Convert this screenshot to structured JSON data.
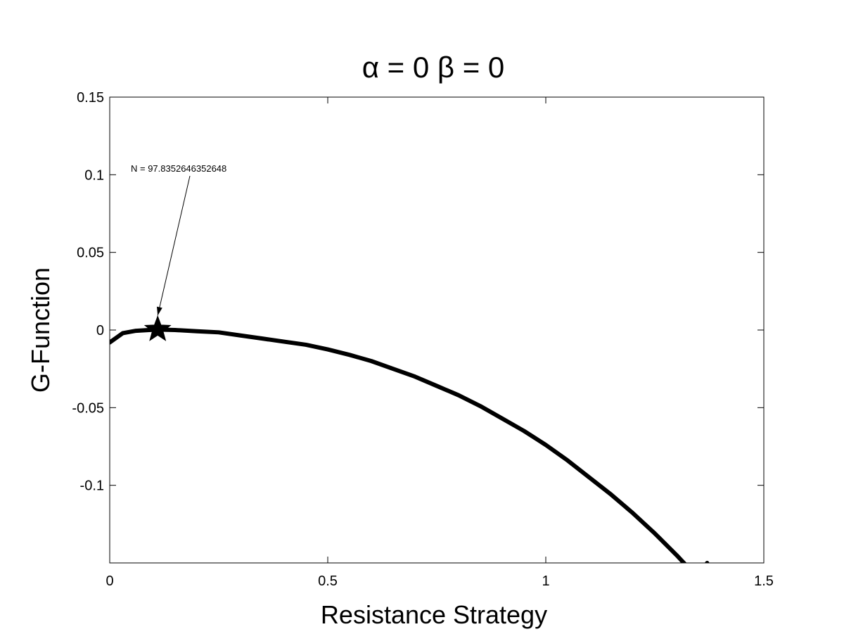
{
  "chart_data": {
    "type": "line",
    "title": "α = 0 β = 0",
    "xlabel": "Resistance Strategy",
    "ylabel": "G-Function",
    "xlim": [
      0,
      1.5
    ],
    "ylim": [
      -0.15,
      0.15
    ],
    "x_ticks": [
      0,
      0.5,
      1,
      1.5
    ],
    "x_tick_labels": [
      "0",
      "0.5",
      "1",
      "1.5"
    ],
    "y_ticks": [
      -0.1,
      -0.05,
      0,
      0.05,
      0.1,
      0.15
    ],
    "y_tick_labels": [
      "-0.1",
      "-0.05",
      "0",
      "0.05",
      "0.1",
      "0.15"
    ],
    "grid": false,
    "legend": "none",
    "line_color": "#000000",
    "series": [
      {
        "x": [
          0,
          0.03,
          0.06,
          0.09,
          0.11,
          0.15,
          0.2,
          0.25,
          0.3,
          0.35,
          0.4,
          0.45,
          0.5,
          0.55,
          0.6,
          0.65,
          0.7,
          0.75,
          0.8,
          0.85,
          0.9,
          0.95,
          1.0,
          1.05,
          1.1,
          1.15,
          1.2,
          1.25,
          1.3,
          1.35,
          1.37
        ],
        "y": [
          -0.008,
          -0.002,
          -0.0005,
          0,
          0.0003,
          0,
          -0.0008,
          -0.0015,
          -0.0035,
          -0.0055,
          -0.0075,
          -0.0095,
          -0.0125,
          -0.016,
          -0.02,
          -0.025,
          -0.03,
          -0.036,
          -0.042,
          -0.049,
          -0.057,
          -0.065,
          -0.074,
          -0.084,
          -0.095,
          -0.106,
          -0.118,
          -0.131,
          -0.145,
          -0.16,
          -0.15
        ]
      }
    ],
    "marker": {
      "x": 0.11,
      "y": 0.0003,
      "shape": "star"
    },
    "annotation": {
      "text": "N = 97.8352646352648",
      "points_to_x": 0.11,
      "points_to_y": 0.0003
    }
  }
}
